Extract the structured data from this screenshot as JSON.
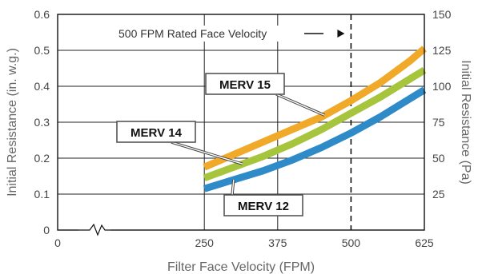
{
  "chart_data": {
    "type": "line",
    "xlabel": "Filter Face Velocity (FPM)",
    "ylabel_left": "Initial Resistance (in. w.g.)",
    "ylabel_right": "Initial Resistance (Pa)",
    "xlim": [
      0,
      625
    ],
    "ylim_left": [
      0,
      0.6
    ],
    "ylim_right": [
      0,
      150
    ],
    "x_ticks": [
      0,
      250,
      375,
      500,
      625
    ],
    "x_tick_labels": [
      "0",
      "250",
      "375",
      "500",
      "625"
    ],
    "y_left_ticks": [
      0,
      0.1,
      0.2,
      0.3,
      0.4,
      0.5,
      0.6
    ],
    "y_left_tick_labels": [
      "0",
      "0.1",
      "0.2",
      "0.3",
      "0.4",
      "0.5",
      "0.6"
    ],
    "y_right_ticks": [
      0,
      25,
      50,
      75,
      100,
      125,
      150
    ],
    "y_right_tick_labels": [
      "",
      "25",
      "50",
      "75",
      "100",
      "125",
      "150"
    ],
    "axis_break": "x",
    "grid": true,
    "reference_line": {
      "x": 500,
      "label": "500 FPM Rated Face Velocity"
    },
    "series": [
      {
        "name": "MERV 15",
        "color": "#f0a928",
        "x": [
          250,
          300,
          350,
          400,
          450,
          500,
          550,
          600,
          625
        ],
        "y": [
          0.175,
          0.21,
          0.245,
          0.28,
          0.315,
          0.36,
          0.41,
          0.47,
          0.505
        ]
      },
      {
        "name": "MERV 14",
        "color": "#a6c43c",
        "x": [
          250,
          300,
          350,
          400,
          450,
          500,
          550,
          600,
          625
        ],
        "y": [
          0.145,
          0.175,
          0.205,
          0.24,
          0.28,
          0.325,
          0.37,
          0.42,
          0.445
        ]
      },
      {
        "name": "MERV 12",
        "color": "#2f8ac8",
        "x": [
          250,
          300,
          350,
          400,
          450,
          500,
          550,
          600,
          625
        ],
        "y": [
          0.115,
          0.14,
          0.165,
          0.195,
          0.23,
          0.27,
          0.315,
          0.365,
          0.39
        ]
      }
    ],
    "callouts": [
      {
        "text": "MERV 15",
        "series": "MERV 15",
        "target_x": 455
      },
      {
        "text": "MERV 14",
        "series": "MERV 14",
        "target_x": 315
      },
      {
        "text": "MERV 12",
        "series": "MERV 12",
        "target_x": 300
      }
    ]
  }
}
